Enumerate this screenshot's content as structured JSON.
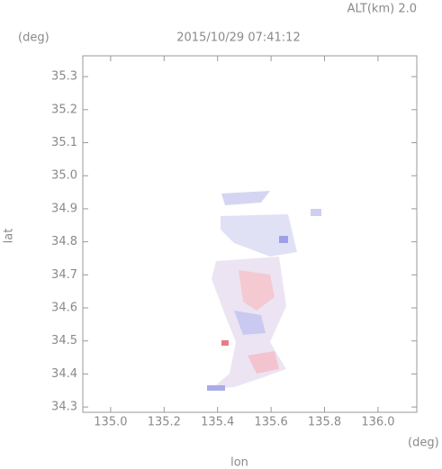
{
  "chart_data": {
    "type": "map",
    "title": "2015/10/29 07:41:12",
    "altitude_label": "ALT(km) 2.0",
    "y_unit": "(deg)",
    "x_unit": "(deg)",
    "xlabel": "lon",
    "ylabel": "lat",
    "xlim": [
      134.896,
      136.145
    ],
    "ylim": [
      34.284,
      35.363
    ],
    "xticks": [
      {
        "value": 135,
        "label": "135.0"
      },
      135.2,
      135.4,
      135.6,
      135.8,
      {
        "value": 136,
        "label": "136.0"
      }
    ],
    "yticks": [
      34.3,
      34.4,
      34.5,
      34.6,
      34.7,
      34.8,
      34.9,
      {
        "value": 35,
        "label": "35.0"
      },
      35.1,
      35.2,
      35.3
    ]
  }
}
